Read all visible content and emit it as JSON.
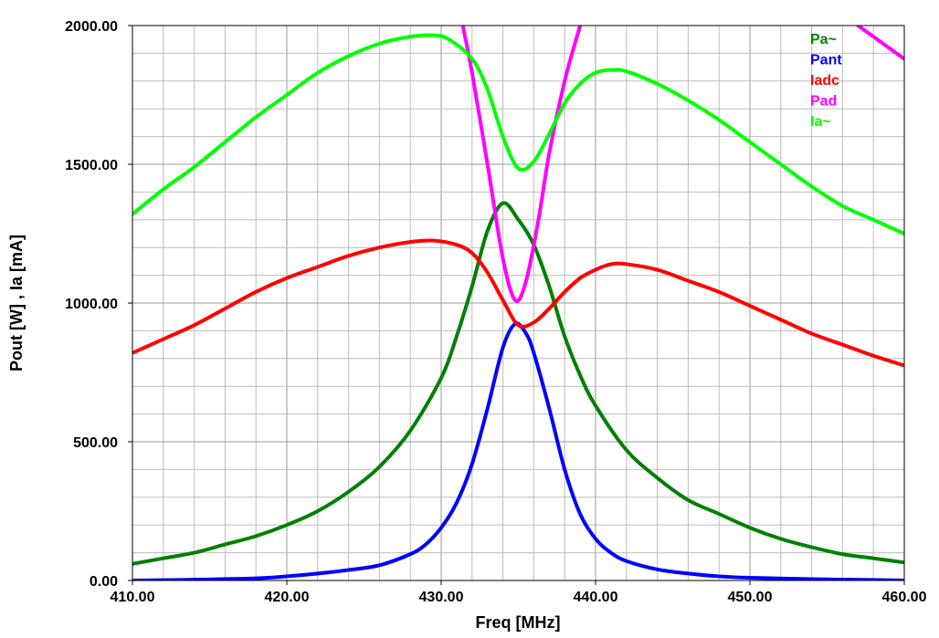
{
  "chart_data": {
    "type": "line",
    "xlabel": "Freq [MHz]",
    "ylabel": "Pout [W] , Ia [mA]",
    "xlim": [
      410,
      460
    ],
    "ylim": [
      0,
      2000
    ],
    "x_ticks": [
      "410.00",
      "420.00",
      "430.00",
      "440.00",
      "450.00",
      "460.00"
    ],
    "y_ticks": [
      "0.00",
      "500.00",
      "1000.00",
      "1500.00",
      "2000.00"
    ],
    "grid": true,
    "legend_position": "top-right",
    "series": [
      {
        "name": "Pa~",
        "color": "#008000",
        "points": [
          [
            410,
            60
          ],
          [
            412,
            80
          ],
          [
            414,
            100
          ],
          [
            416,
            130
          ],
          [
            418,
            160
          ],
          [
            420,
            200
          ],
          [
            422,
            250
          ],
          [
            424,
            320
          ],
          [
            426,
            410
          ],
          [
            428,
            540
          ],
          [
            430,
            730
          ],
          [
            431,
            880
          ],
          [
            432,
            1060
          ],
          [
            433,
            1260
          ],
          [
            434,
            1360
          ],
          [
            435,
            1300
          ],
          [
            436,
            1210
          ],
          [
            437,
            1060
          ],
          [
            438,
            880
          ],
          [
            439,
            740
          ],
          [
            440,
            630
          ],
          [
            442,
            470
          ],
          [
            444,
            370
          ],
          [
            446,
            290
          ],
          [
            448,
            240
          ],
          [
            450,
            190
          ],
          [
            452,
            150
          ],
          [
            454,
            120
          ],
          [
            456,
            95
          ],
          [
            458,
            80
          ],
          [
            460,
            65
          ]
        ]
      },
      {
        "name": "Pant",
        "color": "#0000ff",
        "points": [
          [
            410,
            0
          ],
          [
            414,
            3
          ],
          [
            418,
            8
          ],
          [
            420,
            15
          ],
          [
            422,
            25
          ],
          [
            424,
            38
          ],
          [
            426,
            55
          ],
          [
            428,
            95
          ],
          [
            429,
            130
          ],
          [
            430,
            190
          ],
          [
            431,
            280
          ],
          [
            432,
            420
          ],
          [
            433,
            620
          ],
          [
            434,
            840
          ],
          [
            434.8,
            925
          ],
          [
            435.5,
            890
          ],
          [
            436,
            820
          ],
          [
            437,
            620
          ],
          [
            438,
            400
          ],
          [
            439,
            240
          ],
          [
            440,
            150
          ],
          [
            441,
            100
          ],
          [
            442,
            70
          ],
          [
            444,
            40
          ],
          [
            446,
            25
          ],
          [
            448,
            15
          ],
          [
            450,
            10
          ],
          [
            454,
            5
          ],
          [
            458,
            2
          ],
          [
            460,
            0
          ]
        ]
      },
      {
        "name": "Iadc",
        "color": "#ff0000",
        "points": [
          [
            410,
            820
          ],
          [
            412,
            870
          ],
          [
            414,
            920
          ],
          [
            416,
            980
          ],
          [
            418,
            1040
          ],
          [
            420,
            1090
          ],
          [
            422,
            1130
          ],
          [
            424,
            1170
          ],
          [
            426,
            1200
          ],
          [
            428,
            1220
          ],
          [
            429.5,
            1225
          ],
          [
            431,
            1210
          ],
          [
            432,
            1180
          ],
          [
            433,
            1110
          ],
          [
            434,
            1010
          ],
          [
            435,
            920
          ],
          [
            436,
            930
          ],
          [
            437,
            980
          ],
          [
            438,
            1040
          ],
          [
            439,
            1090
          ],
          [
            440,
            1120
          ],
          [
            441,
            1140
          ],
          [
            442,
            1140
          ],
          [
            444,
            1120
          ],
          [
            446,
            1080
          ],
          [
            448,
            1040
          ],
          [
            450,
            990
          ],
          [
            452,
            940
          ],
          [
            454,
            890
          ],
          [
            456,
            850
          ],
          [
            458,
            810
          ],
          [
            460,
            775
          ]
        ]
      },
      {
        "name": "Pad",
        "color": "#ff00ff",
        "points": [
          [
            431.4,
            2000
          ],
          [
            432,
            1830
          ],
          [
            433,
            1500
          ],
          [
            434,
            1160
          ],
          [
            434.8,
            1010
          ],
          [
            435.5,
            1080
          ],
          [
            436.3,
            1300
          ],
          [
            437,
            1540
          ],
          [
            438,
            1800
          ],
          [
            439,
            2000
          ]
        ],
        "points_b": [
          [
            457,
            2000
          ],
          [
            458,
            1960
          ],
          [
            459,
            1920
          ],
          [
            460,
            1880
          ]
        ]
      },
      {
        "name": "Ia~",
        "color": "#00ff00",
        "points": [
          [
            410,
            1320
          ],
          [
            412,
            1410
          ],
          [
            414,
            1490
          ],
          [
            416,
            1580
          ],
          [
            418,
            1670
          ],
          [
            420,
            1750
          ],
          [
            422,
            1830
          ],
          [
            424,
            1890
          ],
          [
            426,
            1935
          ],
          [
            428,
            1960
          ],
          [
            429.5,
            1965
          ],
          [
            430.5,
            1950
          ],
          [
            432,
            1880
          ],
          [
            433,
            1770
          ],
          [
            434,
            1600
          ],
          [
            435,
            1485
          ],
          [
            436,
            1510
          ],
          [
            437,
            1610
          ],
          [
            438,
            1720
          ],
          [
            439,
            1790
          ],
          [
            440,
            1830
          ],
          [
            441,
            1840
          ],
          [
            442,
            1835
          ],
          [
            444,
            1790
          ],
          [
            446,
            1730
          ],
          [
            448,
            1660
          ],
          [
            450,
            1580
          ],
          [
            452,
            1500
          ],
          [
            454,
            1420
          ],
          [
            456,
            1350
          ],
          [
            458,
            1300
          ],
          [
            460,
            1250
          ]
        ]
      }
    ]
  }
}
